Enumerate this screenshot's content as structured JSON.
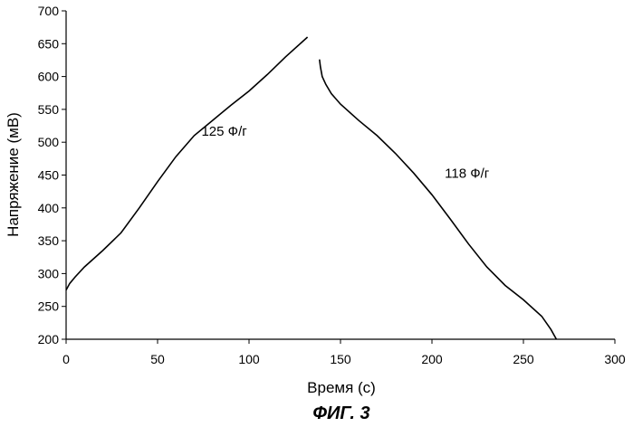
{
  "chart_data": {
    "type": "line",
    "xlabel": "Время (с)",
    "ylabel": "Напряжение (мВ)",
    "xlim": [
      0,
      300
    ],
    "ylim": [
      200,
      700
    ],
    "xticks": [
      0,
      50,
      100,
      150,
      200,
      250,
      300
    ],
    "yticks": [
      200,
      250,
      300,
      350,
      400,
      450,
      500,
      550,
      600,
      650,
      700
    ],
    "grid": false,
    "series": [
      {
        "x": [
          0,
          2,
          5,
          10,
          20,
          30,
          40,
          50,
          60,
          70,
          80,
          90,
          100,
          110,
          120,
          132
        ],
        "y": [
          275,
          285,
          295,
          310,
          335,
          362,
          400,
          440,
          478,
          510,
          533,
          556,
          578,
          603,
          630,
          660
        ]
      },
      {
        "x": [
          138.5,
          139,
          140,
          142,
          145,
          150,
          160,
          170,
          180,
          190,
          200,
          210,
          220,
          230,
          240,
          250,
          260,
          265,
          268
        ],
        "y": [
          626,
          615,
          600,
          588,
          574,
          558,
          533,
          510,
          483,
          453,
          420,
          383,
          345,
          310,
          282,
          260,
          235,
          215,
          200
        ]
      }
    ],
    "annotations": [
      {
        "text": "125 Ф/г",
        "x": 74,
        "y": 510
      },
      {
        "text": "118 Ф/г",
        "x": 207,
        "y": 446
      }
    ]
  },
  "caption": "ФИГ. 3"
}
